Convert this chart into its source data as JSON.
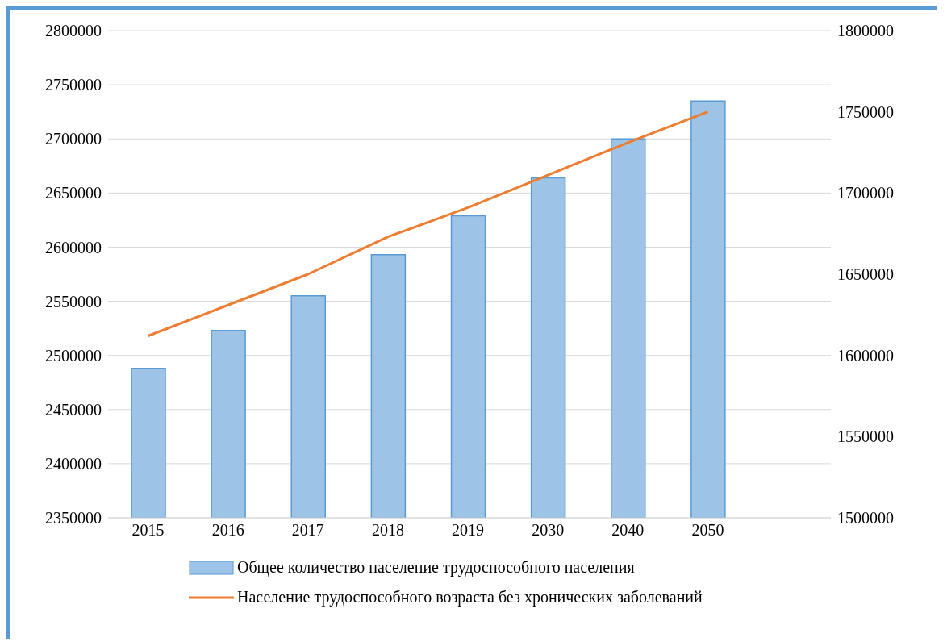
{
  "chart_data": {
    "type": "bar",
    "categories": [
      "2015",
      "2016",
      "2017",
      "2018",
      "2019",
      "2030",
      "2040",
      "2050"
    ],
    "series": [
      {
        "name": "Общее количество население трудоспособного  населения",
        "color": "#9dc3e6",
        "values": [
          2488000,
          2523000,
          2555000,
          2593000,
          2629000,
          2664000,
          2700000,
          2735000
        ]
      },
      {
        "name": "Население трудоспособного  возраста без хронических заболеваний",
        "type": "line",
        "axis": "y2",
        "color": "#ed7d31",
        "values": [
          1612000,
          1631000,
          1650000,
          1673000,
          1691000,
          1711000,
          1731000,
          1750000
        ]
      }
    ],
    "ylim": [
      2350000,
      2800000
    ],
    "yticks": [
      2350000,
      2400000,
      2450000,
      2500000,
      2550000,
      2600000,
      2650000,
      2700000,
      2750000,
      2800000
    ],
    "y2lim": [
      1500000,
      1800000
    ],
    "y2ticks": [
      1500000,
      1550000,
      1600000,
      1650000,
      1700000,
      1750000,
      1800000
    ],
    "grid": "y",
    "legend": "bottom",
    "marker": "none",
    "line_style": "solid"
  }
}
